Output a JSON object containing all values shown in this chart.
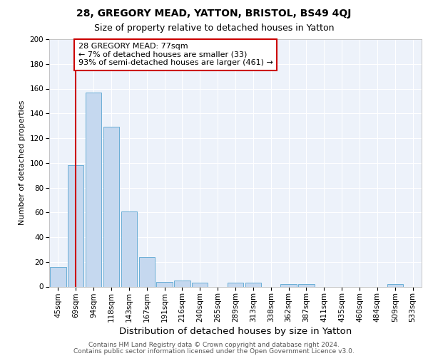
{
  "title_line1": "28, GREGORY MEAD, YATTON, BRISTOL, BS49 4QJ",
  "title_line2": "Size of property relative to detached houses in Yatton",
  "xlabel": "Distribution of detached houses by size in Yatton",
  "ylabel": "Number of detached properties",
  "categories": [
    "45sqm",
    "69sqm",
    "94sqm",
    "118sqm",
    "143sqm",
    "167sqm",
    "191sqm",
    "216sqm",
    "240sqm",
    "265sqm",
    "289sqm",
    "313sqm",
    "338sqm",
    "362sqm",
    "387sqm",
    "411sqm",
    "435sqm",
    "460sqm",
    "484sqm",
    "509sqm",
    "533sqm"
  ],
  "values": [
    16,
    98,
    157,
    129,
    61,
    24,
    4,
    5,
    3,
    0,
    3,
    3,
    0,
    2,
    2,
    0,
    0,
    0,
    0,
    2,
    0
  ],
  "bar_color": "#c5d8ef",
  "bar_edge_color": "#6aaed6",
  "vline_x_index": 1,
  "vline_color": "#cc0000",
  "annotation_text": "28 GREGORY MEAD: 77sqm\n← 7% of detached houses are smaller (33)\n93% of semi-detached houses are larger (461) →",
  "annotation_box_facecolor": "#ffffff",
  "annotation_box_edgecolor": "#cc0000",
  "footer_line1": "Contains HM Land Registry data © Crown copyright and database right 2024.",
  "footer_line2": "Contains public sector information licensed under the Open Government Licence v3.0.",
  "ylim": [
    0,
    200
  ],
  "yticks": [
    0,
    20,
    40,
    60,
    80,
    100,
    120,
    140,
    160,
    180,
    200
  ],
  "ax_facecolor": "#edf2fa",
  "grid_color": "#ffffff",
  "title1_fontsize": 10,
  "title2_fontsize": 9,
  "xlabel_fontsize": 9.5,
  "ylabel_fontsize": 8,
  "tick_fontsize": 7.5,
  "annotation_fontsize": 8,
  "footer_fontsize": 6.5
}
